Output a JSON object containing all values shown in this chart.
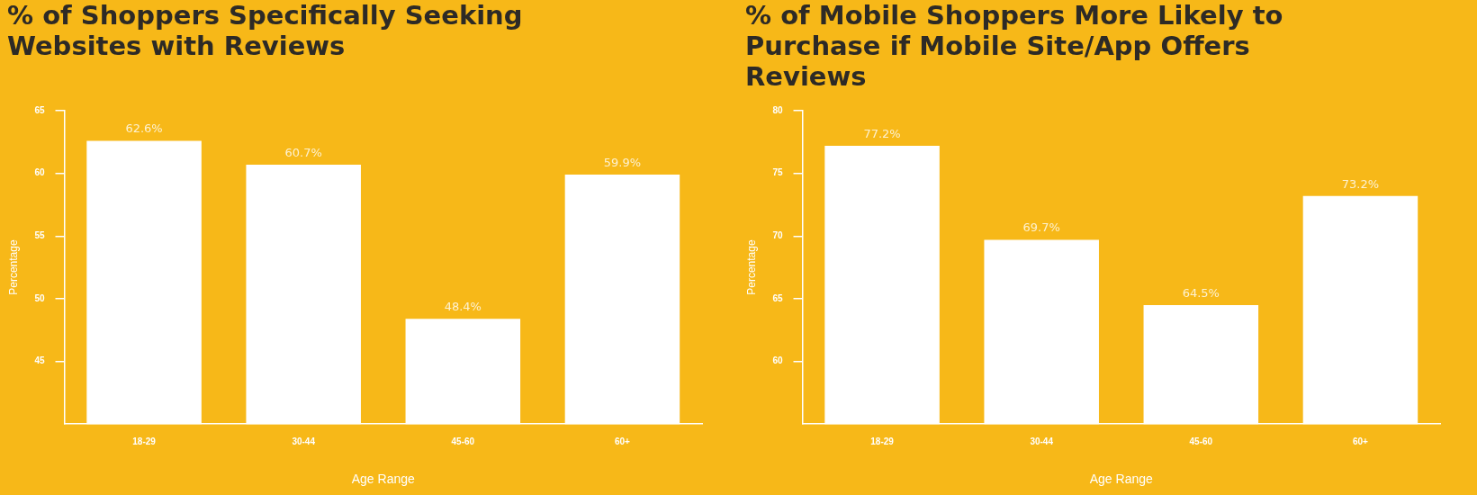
{
  "chart_data": [
    {
      "type": "bar",
      "title": "% of Shoppers Specifically Seeking Websites with Reviews",
      "xlabel": "Age Range",
      "ylabel": "Percentage",
      "categories": [
        "18-29",
        "30-44",
        "45-60",
        "60+"
      ],
      "values": [
        62.6,
        60.7,
        48.4,
        59.9
      ],
      "value_labels": [
        "62.6%",
        "60.7%",
        "48.4%",
        "59.9%"
      ],
      "color": "#ffffff",
      "ylim": [
        40,
        65
      ],
      "yticks": [
        45,
        50,
        55,
        60,
        65
      ],
      "grid": false,
      "legend": false
    },
    {
      "type": "bar",
      "title": "% of Mobile Shoppers More Likely to Purchase if Mobile Site/App Offers Reviews",
      "xlabel": "Age Range",
      "ylabel": "Percentage",
      "categories": [
        "18-29",
        "30-44",
        "45-60",
        "60+"
      ],
      "values": [
        77.2,
        69.7,
        64.5,
        73.2
      ],
      "value_labels": [
        "77.2%",
        "69.7%",
        "64.5%",
        "73.2%"
      ],
      "color": "#ffffff",
      "ylim": [
        55,
        80
      ],
      "yticks": [
        60,
        65,
        70,
        75,
        80
      ],
      "grid": false,
      "legend": false
    }
  ]
}
